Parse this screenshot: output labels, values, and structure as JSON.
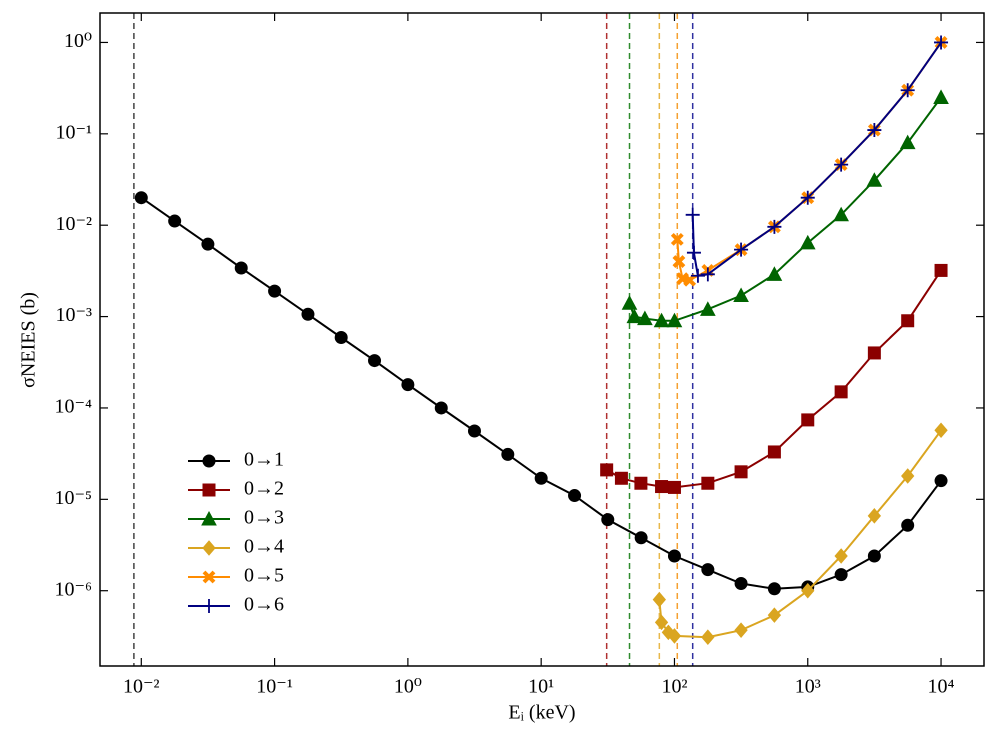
{
  "chart_data": {
    "type": "line",
    "x_label": "Eᵢ (keV)",
    "y_label": "σNEIES (b)",
    "xscale": "log",
    "yscale": "log",
    "xlim": [
      0.0049,
      21000
    ],
    "ylim": [
      1.5e-07,
      2.1
    ],
    "xticks": [
      {
        "value": 0.01,
        "label": "10⁻²"
      },
      {
        "value": 0.1,
        "label": "10⁻¹"
      },
      {
        "value": 1,
        "label": "10⁰"
      },
      {
        "value": 10,
        "label": "10¹"
      },
      {
        "value": 100,
        "label": "10²"
      },
      {
        "value": 1000,
        "label": "10³"
      },
      {
        "value": 10000,
        "label": "10⁴"
      }
    ],
    "yticks": [
      {
        "value": 1e-06,
        "label": "10⁻⁶"
      },
      {
        "value": 1e-05,
        "label": "10⁻⁵"
      },
      {
        "value": 0.0001,
        "label": "10⁻⁴"
      },
      {
        "value": 0.001,
        "label": "10⁻³"
      },
      {
        "value": 0.01,
        "label": "10⁻²"
      },
      {
        "value": 0.1,
        "label": "10⁻¹"
      },
      {
        "value": 1,
        "label": "10⁰"
      }
    ],
    "legend": "lower left",
    "vlines": [
      {
        "x": 0.0088,
        "color": "#444444"
      },
      {
        "x": 31,
        "color": "#b03030"
      },
      {
        "x": 46,
        "color": "#2e8b2e"
      },
      {
        "x": 77,
        "color": "#e8b84a"
      },
      {
        "x": 105,
        "color": "#f5a030"
      },
      {
        "x": 137,
        "color": "#3030a0"
      }
    ],
    "series": [
      {
        "name": "0→1",
        "color": "#000000",
        "marker": "circle",
        "x": [
          0.01,
          0.0178,
          0.0316,
          0.0562,
          0.1,
          0.178,
          0.316,
          0.562,
          1,
          1.78,
          3.16,
          5.62,
          10,
          17.8,
          31.6,
          56.2,
          100,
          178,
          316,
          562,
          1000,
          1780,
          3160,
          5620,
          10000
        ],
        "values": [
          0.02,
          0.0111,
          0.0062,
          0.0034,
          0.0019,
          0.00106,
          0.00059,
          0.00033,
          0.00018,
          0.0001,
          5.6e-05,
          3.1e-05,
          1.7e-05,
          1.1e-05,
          6e-06,
          3.8e-06,
          2.4e-06,
          1.7e-06,
          1.2e-06,
          1.05e-06,
          1.1e-06,
          1.5e-06,
          2.4e-06,
          5.2e-06,
          1.6e-05
        ]
      },
      {
        "name": "0→2",
        "color": "#8b0000",
        "marker": "square",
        "x": [
          31,
          40,
          56,
          80,
          100,
          178,
          316,
          562,
          1000,
          1780,
          3160,
          5620,
          10000
        ],
        "values": [
          2.1e-05,
          1.7e-05,
          1.5e-05,
          1.38e-05,
          1.35e-05,
          1.5e-05,
          2e-05,
          3.3e-05,
          7.4e-05,
          0.00015,
          0.0004,
          0.0009,
          0.0032
        ]
      },
      {
        "name": "0→3",
        "color": "#006400",
        "marker": "triangle",
        "x": [
          46,
          50,
          60,
          80,
          100,
          178,
          316,
          562,
          1000,
          1780,
          3160,
          5620,
          10000
        ],
        "values": [
          0.0014,
          0.001,
          0.00095,
          0.0009,
          0.0009,
          0.0012,
          0.0017,
          0.0029,
          0.0064,
          0.013,
          0.031,
          0.08,
          0.25
        ]
      },
      {
        "name": "0→4",
        "color": "#daa520",
        "marker": "diamond",
        "x": [
          77,
          80,
          90,
          100,
          178,
          316,
          562,
          1000,
          1780,
          3160,
          5620,
          10000
        ],
        "values": [
          8e-07,
          4.5e-07,
          3.5e-07,
          3.2e-07,
          3.1e-07,
          3.7e-07,
          5.4e-07,
          1e-06,
          2.4e-06,
          6.6e-06,
          1.8e-05,
          5.7e-05
        ]
      },
      {
        "name": "0→5",
        "color": "#ff8c00",
        "marker": "x",
        "x": [
          105,
          108,
          115,
          130,
          178,
          316,
          562,
          1000,
          1780,
          3160,
          5620,
          10000
        ],
        "values": [
          0.007,
          0.004,
          0.0026,
          0.0025,
          0.0032,
          0.0054,
          0.0096,
          0.02,
          0.046,
          0.11,
          0.3,
          1
        ]
      },
      {
        "name": "0→6",
        "color": "#000080",
        "marker": "plus",
        "x": [
          137,
          140,
          150,
          178,
          316,
          562,
          1000,
          1780,
          3160,
          5620,
          10000
        ],
        "values": [
          0.013,
          0.005,
          0.0028,
          0.0029,
          0.0054,
          0.0096,
          0.02,
          0.046,
          0.11,
          0.3,
          1
        ]
      }
    ]
  }
}
